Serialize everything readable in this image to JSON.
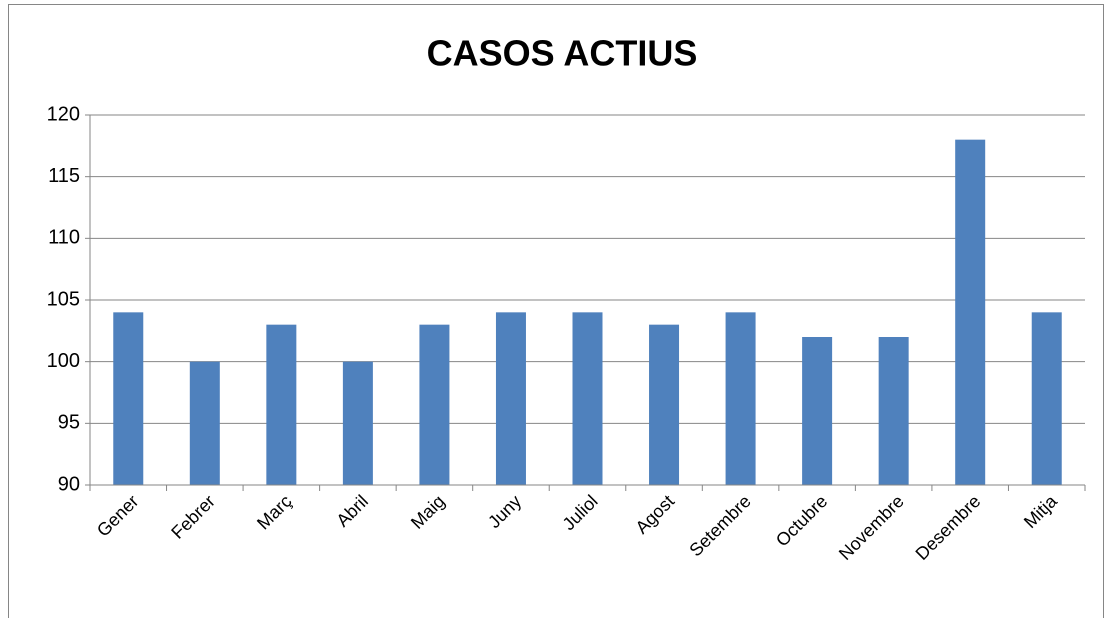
{
  "chart_data": {
    "type": "bar",
    "title": "CASOS ACTIUS",
    "categories": [
      "Gener",
      "Febrer",
      "Març",
      "Abril",
      "Maig",
      "Juny",
      "Juliol",
      "Agost",
      "Setembre",
      "Octubre",
      "Novembre",
      "Desembre",
      "Mitja"
    ],
    "values": [
      104,
      100,
      103,
      100,
      103,
      104,
      104,
      103,
      104,
      102,
      102,
      118,
      104
    ],
    "color": "#4f81bd",
    "ylim": [
      90,
      120
    ],
    "yticks": [
      90,
      95,
      100,
      105,
      110,
      115,
      120
    ],
    "grid": true
  }
}
